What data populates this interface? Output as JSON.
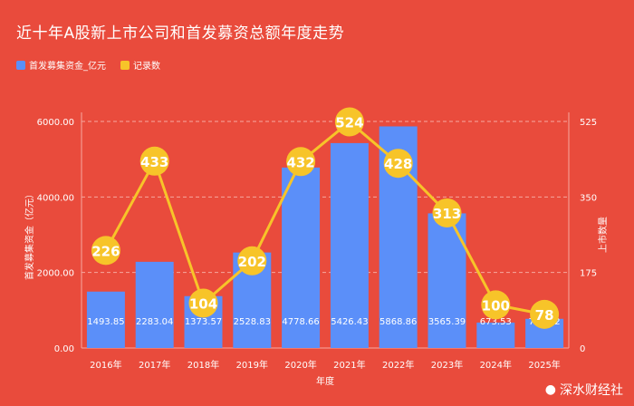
{
  "title": "近十年A股新上市公司和首发募资总额年度走势",
  "watermark": "深水财经社",
  "colors": {
    "background": "#e94b3c",
    "bar": "#5b8ff9",
    "line": "#f7c429"
  },
  "chart_data": {
    "type": "bar",
    "categories": [
      "2016年",
      "2017年",
      "2018年",
      "2019年",
      "2020年",
      "2021年",
      "2022年",
      "2023年",
      "2024年",
      "2025年"
    ],
    "series": [
      {
        "name": "首发募集资金_亿元",
        "type": "bar",
        "axis": "left",
        "values": [
          1493.85,
          2283.04,
          1373.57,
          2528.83,
          4778.66,
          5426.43,
          5868.86,
          3565.39,
          673.53,
          773.02
        ],
        "labels": [
          "1493.85",
          "2283.04",
          "1373.57",
          "2528.83",
          "4778.66",
          "5426.43",
          "5868.86",
          "3565.39",
          "673.53",
          "773.02"
        ]
      },
      {
        "name": "记录数",
        "type": "line",
        "axis": "right",
        "values": [
          226,
          433,
          104,
          202,
          432,
          524,
          428,
          313,
          100,
          78
        ]
      }
    ],
    "xlabel": "年度",
    "ylabel": "首发募集资金（亿元）",
    "y2label": "上市数量",
    "ylim": [
      0,
      6000
    ],
    "y2lim": [
      0,
      525
    ],
    "yticks": [
      "0.00",
      "2000.00",
      "4000.00",
      "6000.00"
    ],
    "y2ticks": [
      "0",
      "175",
      "350",
      "525"
    ],
    "legend_position": "top-left",
    "grid": true
  }
}
